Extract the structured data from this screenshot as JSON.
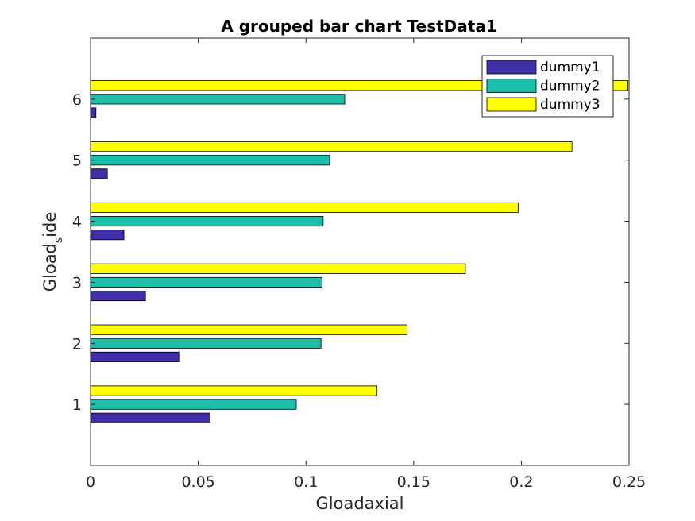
{
  "chart_data": {
    "type": "bar",
    "orientation": "horizontal",
    "title": "A grouped bar chart TestData1",
    "xlabel": "Gloadaxial",
    "ylabel_main": "Gload",
    "ylabel_sub": "s",
    "ylabel_tail": "ide",
    "categories": [
      "1",
      "2",
      "3",
      "4",
      "5",
      "6"
    ],
    "xlim": [
      0,
      0.25
    ],
    "xticks": [
      "0",
      "0.05",
      "0.1",
      "0.15",
      "0.2",
      "0.25"
    ],
    "ylim": [
      0,
      7
    ],
    "legend_placement": "top-right",
    "series": [
      {
        "name": "dummy1",
        "color": "#3e2ea8",
        "values": [
          0.0555,
          0.041,
          0.0255,
          0.0155,
          0.0078,
          0.0025
        ]
      },
      {
        "name": "dummy2",
        "color": "#1ebfaa",
        "values": [
          0.0955,
          0.107,
          0.1075,
          0.108,
          0.111,
          0.118
        ]
      },
      {
        "name": "dummy3",
        "color": "#ffff00",
        "values": [
          0.133,
          0.147,
          0.174,
          0.1985,
          0.2235,
          0.2495
        ]
      }
    ]
  }
}
